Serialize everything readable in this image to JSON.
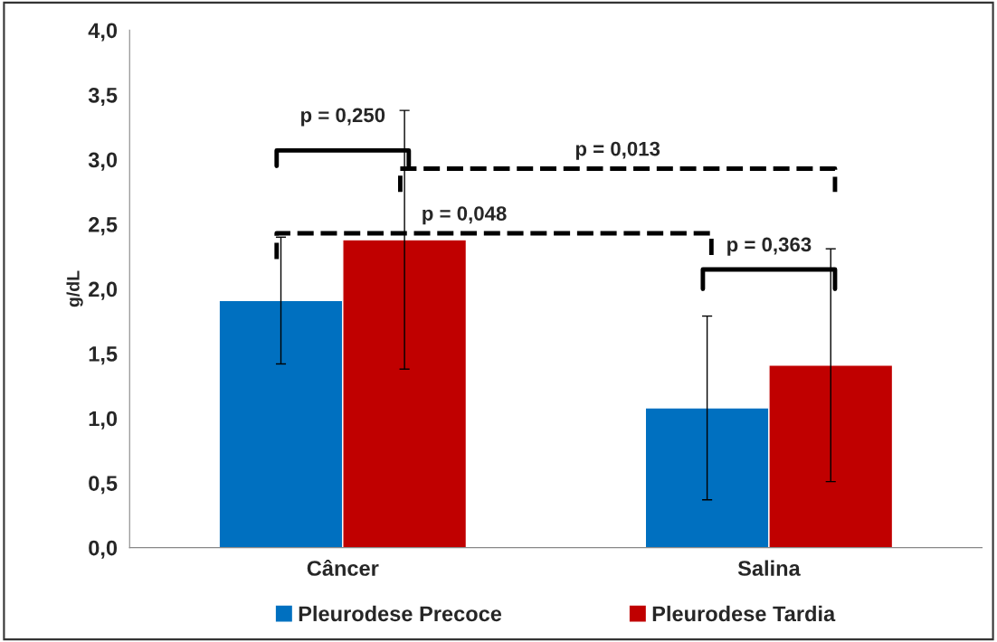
{
  "chart_data": {
    "type": "bar",
    "ylabel": "g/dL",
    "categories": [
      "Câncer",
      "Salina"
    ],
    "series": [
      {
        "name": "Pleurodese Precoce",
        "color": "#0070c0",
        "values": [
          1.91,
          1.08
        ],
        "errors": [
          0.49,
          0.71
        ]
      },
      {
        "name": "Pleurodese Tardia",
        "color": "#c00000",
        "values": [
          2.38,
          1.41
        ],
        "errors": [
          1.0,
          0.9
        ]
      }
    ],
    "ylim": [
      0,
      4
    ],
    "yticks": [
      {
        "value": 0,
        "label": "0,0"
      },
      {
        "value": 0.5,
        "label": "0,5"
      },
      {
        "value": 1,
        "label": "1,0"
      },
      {
        "value": 1.5,
        "label": "1,5"
      },
      {
        "value": 2,
        "label": "2,0"
      },
      {
        "value": 2.5,
        "label": "2,5"
      },
      {
        "value": 3,
        "label": "3,0"
      },
      {
        "value": 3.5,
        "label": "3,5"
      },
      {
        "value": 4,
        "label": "4,0"
      }
    ],
    "annotations": [
      "p = 0,250",
      "p = 0,013",
      "p = 0,048",
      "p = 0,363"
    ],
    "grid": false,
    "legend": "bottom"
  }
}
